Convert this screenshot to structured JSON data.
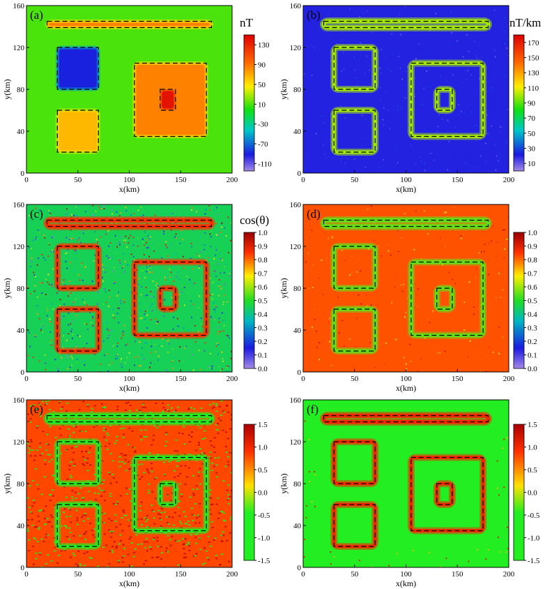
{
  "figure": {
    "xlabel": "x(km)",
    "ylabel": "y(km)",
    "x_ticks": [
      0,
      50,
      100,
      150,
      200
    ],
    "y_ticks": [
      0,
      40,
      80,
      120,
      160
    ],
    "xlim": [
      0,
      200
    ],
    "ylim": [
      0,
      160
    ]
  },
  "bodies": [
    {
      "name": "thin-bar",
      "x": [
        20,
        180
      ],
      "y": [
        139,
        145
      ]
    },
    {
      "name": "square-upper-left",
      "x": [
        30,
        70
      ],
      "y": [
        80,
        120
      ]
    },
    {
      "name": "square-lower-left",
      "x": [
        30,
        70
      ],
      "y": [
        20,
        60
      ]
    },
    {
      "name": "big-square",
      "x": [
        105,
        175
      ],
      "y": [
        35,
        105
      ]
    },
    {
      "name": "small-square",
      "x": [
        130,
        145
      ],
      "y": [
        60,
        80
      ]
    }
  ],
  "chart_data": [
    {
      "type": "heatmap",
      "panel_label": "(a)",
      "title": "",
      "xlabel": "x(km)",
      "ylabel": "y(km)",
      "xlim": [
        0,
        200
      ],
      "ylim": [
        0,
        160
      ],
      "colorbar_title": "nT",
      "colorbar_ticks": [
        -110,
        -70,
        -30,
        10,
        50,
        90,
        130
      ],
      "colorbar_range": [
        -125,
        150
      ],
      "background_value": 10,
      "body_values": {
        "thin-bar": 85,
        "square-upper-left": -90,
        "square-lower-left": 65,
        "big-square": 85,
        "small-square": 140
      }
    },
    {
      "type": "heatmap",
      "panel_label": "(b)",
      "title": "",
      "xlabel": "x(km)",
      "ylabel": "y(km)",
      "xlim": [
        0,
        200
      ],
      "ylim": [
        0,
        160
      ],
      "colorbar_title": "nT/km",
      "colorbar_ticks": [
        10,
        30,
        50,
        70,
        90,
        110,
        130,
        150,
        170
      ],
      "colorbar_range": [
        0,
        180
      ],
      "background_value": 20,
      "edge_value": 100
    },
    {
      "type": "heatmap",
      "panel_label": "(c)",
      "title": "",
      "xlabel": "x(km)",
      "ylabel": "y(km)",
      "xlim": [
        0,
        200
      ],
      "ylim": [
        0,
        160
      ],
      "colorbar_title": "cos(θ)",
      "colorbar_ticks": [
        0.0,
        0.1,
        0.2,
        0.3,
        0.4,
        0.5,
        0.6,
        0.7,
        0.8,
        0.9,
        1.0
      ],
      "colorbar_range": [
        0,
        1
      ],
      "background_value": 0.45,
      "edge_value": 0.85
    },
    {
      "type": "heatmap",
      "panel_label": "(d)",
      "title": "",
      "xlabel": "x(km)",
      "ylabel": "y(km)",
      "xlim": [
        0,
        200
      ],
      "ylim": [
        0,
        160
      ],
      "colorbar_title": "",
      "colorbar_ticks": [
        0.0,
        0.1,
        0.2,
        0.3,
        0.4,
        0.5,
        0.6,
        0.7,
        0.8,
        0.9,
        1.0
      ],
      "colorbar_range": [
        0,
        1
      ],
      "background_value": 0.82,
      "edge_value": 0.55
    },
    {
      "type": "heatmap",
      "panel_label": "(e)",
      "title": "",
      "xlabel": "x(km)",
      "ylabel": "y(km)",
      "xlim": [
        0,
        200
      ],
      "ylim": [
        0,
        160
      ],
      "colorbar_title": "",
      "colorbar_ticks": [
        1.5,
        1.0,
        0.5,
        0.0,
        -0.5,
        -1.0,
        -1.5
      ],
      "colorbar_range": [
        -1.5,
        1.5
      ],
      "background_value": 0.8,
      "edge_value": -1.5
    },
    {
      "type": "heatmap",
      "panel_label": "(f)",
      "title": "",
      "xlabel": "x(km)",
      "ylabel": "y(km)",
      "xlim": [
        0,
        200
      ],
      "ylim": [
        0,
        160
      ],
      "colorbar_title": "",
      "colorbar_ticks": [
        1.5,
        1.0,
        0.5,
        0.0,
        -0.5,
        -1.0,
        -1.5
      ],
      "colorbar_range": [
        -1.5,
        1.5
      ],
      "background_value": -1.5,
      "edge_value": 1.0
    }
  ]
}
